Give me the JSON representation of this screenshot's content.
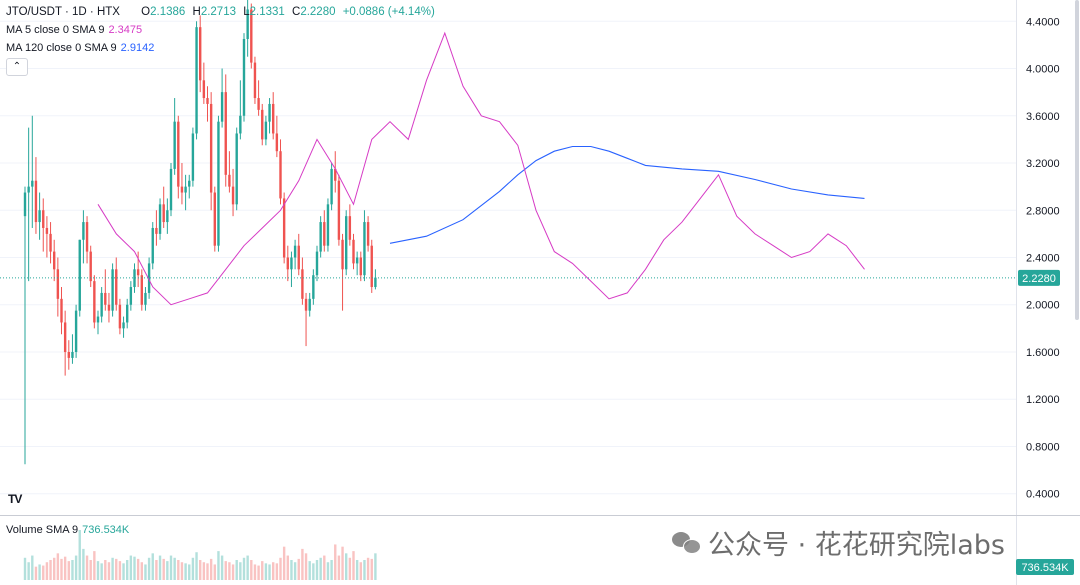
{
  "legend": {
    "symbol": "JTO/USDT · 1D · HTX",
    "open_label": "O",
    "open": "2.1386",
    "high_label": "H",
    "high": "2.2713",
    "low_label": "L",
    "low": "2.1331",
    "close_label": "C",
    "close": "2.2280",
    "change": "+0.0886 (+4.14%)",
    "ma5_label": "MA 5 close 0 SMA 9",
    "ma5_value": "2.3475",
    "ma120_label": "MA 120 close 0 SMA 9",
    "ma120_value": "2.9142",
    "volume_label": "Volume SMA 9",
    "volume_value": "736.534K",
    "collapse_icon": "chevron-up-icon"
  },
  "price_badge": "2.2280",
  "volume_badge": "736.534K",
  "logo_text": "TV",
  "watermark": "公众号 · 花花研究院labs",
  "colors": {
    "up": "#26a69a",
    "down": "#ef5350",
    "ma5": "#d63bc5",
    "ma120": "#2962ff",
    "badge": "#26a69a"
  },
  "chart_data": {
    "type": "candlestick",
    "y_axis_ticks": [
      "4.4000",
      "4.0000",
      "3.6000",
      "3.2000",
      "2.8000",
      "2.4000",
      "2.0000",
      "1.6000",
      "1.2000",
      "0.8000",
      "0.4000"
    ],
    "ylim": [
      0.22,
      4.58
    ],
    "current_price": 2.228,
    "ohlc": [
      [
        2.75,
        3.0,
        0.65,
        2.95
      ],
      [
        2.95,
        3.5,
        2.2,
        3.0
      ],
      [
        3.0,
        3.6,
        2.65,
        3.05
      ],
      [
        3.05,
        3.25,
        2.6,
        2.7
      ],
      [
        2.7,
        2.95,
        2.55,
        2.8
      ],
      [
        2.8,
        2.9,
        2.45,
        2.65
      ],
      [
        2.65,
        2.75,
        2.4,
        2.6
      ],
      [
        2.6,
        2.7,
        2.35,
        2.45
      ],
      [
        2.45,
        2.55,
        2.2,
        2.3
      ],
      [
        2.3,
        2.4,
        1.9,
        2.05
      ],
      [
        2.05,
        2.15,
        1.75,
        1.85
      ],
      [
        1.85,
        1.95,
        1.4,
        1.6
      ],
      [
        1.6,
        1.7,
        1.45,
        1.55
      ],
      [
        1.55,
        1.75,
        1.5,
        1.6
      ],
      [
        1.6,
        2.0,
        1.55,
        1.95
      ],
      [
        1.95,
        2.55,
        1.9,
        2.55
      ],
      [
        2.55,
        2.8,
        2.35,
        2.7
      ],
      [
        2.7,
        2.75,
        2.35,
        2.45
      ],
      [
        2.45,
        2.5,
        2.15,
        2.2
      ],
      [
        2.2,
        2.25,
        1.8,
        1.85
      ],
      [
        1.85,
        1.95,
        1.75,
        1.9
      ],
      [
        1.9,
        2.15,
        1.85,
        2.1
      ],
      [
        2.1,
        2.3,
        1.95,
        2.0
      ],
      [
        2.0,
        2.1,
        1.85,
        1.95
      ],
      [
        1.95,
        2.35,
        1.9,
        2.3
      ],
      [
        2.3,
        2.4,
        1.95,
        2.0
      ],
      [
        2.0,
        2.05,
        1.75,
        1.8
      ],
      [
        1.8,
        1.9,
        1.72,
        1.85
      ],
      [
        1.85,
        2.05,
        1.8,
        2.0
      ],
      [
        2.0,
        2.2,
        1.95,
        2.15
      ],
      [
        2.15,
        2.35,
        2.1,
        2.3
      ],
      [
        2.3,
        2.45,
        2.15,
        2.25
      ],
      [
        2.25,
        2.3,
        1.95,
        2.0
      ],
      [
        2.0,
        2.15,
        1.95,
        2.1
      ],
      [
        2.1,
        2.4,
        2.05,
        2.35
      ],
      [
        2.35,
        2.7,
        2.3,
        2.65
      ],
      [
        2.65,
        2.8,
        2.5,
        2.6
      ],
      [
        2.6,
        2.9,
        2.55,
        2.85
      ],
      [
        2.85,
        3.0,
        2.65,
        2.7
      ],
      [
        2.7,
        2.9,
        2.6,
        2.8
      ],
      [
        2.8,
        3.2,
        2.75,
        3.15
      ],
      [
        3.15,
        3.75,
        3.1,
        3.55
      ],
      [
        3.55,
        3.6,
        2.9,
        3.0
      ],
      [
        3.0,
        3.2,
        2.85,
        2.95
      ],
      [
        2.95,
        3.1,
        2.8,
        3.0
      ],
      [
        3.0,
        3.1,
        2.9,
        3.05
      ],
      [
        3.05,
        3.5,
        3.0,
        3.45
      ],
      [
        3.45,
        4.4,
        3.4,
        4.35
      ],
      [
        4.35,
        4.45,
        3.8,
        3.9
      ],
      [
        3.9,
        4.05,
        3.7,
        3.75
      ],
      [
        3.75,
        3.85,
        3.55,
        3.7
      ],
      [
        3.7,
        3.8,
        2.8,
        2.95
      ],
      [
        2.95,
        3.0,
        2.45,
        2.5
      ],
      [
        2.5,
        3.6,
        2.45,
        3.55
      ],
      [
        3.55,
        4.0,
        3.5,
        3.8
      ],
      [
        3.8,
        3.95,
        3.0,
        3.1
      ],
      [
        3.1,
        3.3,
        2.95,
        3.0
      ],
      [
        3.0,
        3.15,
        2.75,
        2.85
      ],
      [
        2.85,
        3.5,
        2.8,
        3.45
      ],
      [
        3.45,
        3.9,
        3.4,
        3.6
      ],
      [
        3.6,
        4.3,
        3.55,
        4.25
      ],
      [
        4.25,
        4.6,
        4.1,
        4.5
      ],
      [
        4.5,
        4.55,
        4.0,
        4.05
      ],
      [
        4.05,
        4.1,
        3.7,
        3.75
      ],
      [
        3.75,
        3.9,
        3.6,
        3.65
      ],
      [
        3.65,
        3.7,
        3.35,
        3.4
      ],
      [
        3.4,
        3.6,
        3.35,
        3.55
      ],
      [
        3.55,
        3.75,
        3.45,
        3.7
      ],
      [
        3.7,
        3.8,
        3.4,
        3.45
      ],
      [
        3.45,
        3.6,
        3.25,
        3.3
      ],
      [
        3.3,
        3.4,
        2.85,
        2.9
      ],
      [
        2.9,
        2.95,
        2.35,
        2.4
      ],
      [
        2.4,
        2.5,
        2.2,
        2.3
      ],
      [
        2.3,
        2.45,
        2.15,
        2.4
      ],
      [
        2.4,
        2.55,
        2.3,
        2.5
      ],
      [
        2.5,
        2.6,
        2.25,
        2.3
      ],
      [
        2.3,
        2.4,
        2.0,
        2.05
      ],
      [
        2.05,
        2.1,
        1.65,
        1.95
      ],
      [
        1.95,
        2.1,
        1.9,
        2.05
      ],
      [
        2.05,
        2.3,
        2.0,
        2.25
      ],
      [
        2.25,
        2.5,
        2.2,
        2.45
      ],
      [
        2.45,
        2.75,
        2.4,
        2.7
      ],
      [
        2.7,
        2.8,
        2.45,
        2.5
      ],
      [
        2.5,
        2.9,
        2.45,
        2.85
      ],
      [
        2.85,
        3.2,
        2.8,
        3.15
      ],
      [
        3.15,
        3.3,
        2.95,
        3.05
      ],
      [
        3.05,
        3.1,
        2.5,
        2.55
      ],
      [
        2.55,
        2.6,
        1.95,
        2.3
      ],
      [
        2.3,
        2.8,
        2.25,
        2.75
      ],
      [
        2.75,
        2.85,
        2.5,
        2.55
      ],
      [
        2.55,
        2.6,
        2.3,
        2.35
      ],
      [
        2.35,
        2.45,
        2.25,
        2.4
      ],
      [
        2.4,
        2.45,
        2.2,
        2.25
      ],
      [
        2.25,
        2.8,
        2.2,
        2.7
      ],
      [
        2.7,
        2.75,
        2.45,
        2.5
      ],
      [
        2.5,
        2.55,
        2.1,
        2.15
      ],
      [
        2.15,
        2.3,
        2.13,
        2.23
      ]
    ],
    "ma5": [
      [
        20,
        2.85
      ],
      [
        25,
        2.6
      ],
      [
        30,
        2.45
      ],
      [
        35,
        2.15
      ],
      [
        40,
        2.0
      ],
      [
        45,
        2.05
      ],
      [
        50,
        2.1
      ],
      [
        55,
        2.3
      ],
      [
        60,
        2.5
      ],
      [
        65,
        2.65
      ],
      [
        70,
        2.8
      ],
      [
        75,
        3.05
      ],
      [
        80,
        3.4
      ],
      [
        85,
        3.15
      ],
      [
        90,
        2.85
      ],
      [
        95,
        3.4
      ],
      [
        100,
        3.55
      ],
      [
        105,
        3.4
      ],
      [
        110,
        3.9
      ],
      [
        115,
        4.3
      ],
      [
        120,
        3.85
      ],
      [
        125,
        3.6
      ],
      [
        130,
        3.55
      ],
      [
        135,
        3.35
      ],
      [
        140,
        2.8
      ],
      [
        145,
        2.45
      ],
      [
        150,
        2.35
      ],
      [
        155,
        2.2
      ],
      [
        160,
        2.05
      ],
      [
        165,
        2.1
      ],
      [
        170,
        2.3
      ],
      [
        175,
        2.55
      ],
      [
        180,
        2.7
      ],
      [
        185,
        2.9
      ],
      [
        190,
        3.1
      ],
      [
        195,
        2.75
      ],
      [
        200,
        2.6
      ],
      [
        205,
        2.5
      ],
      [
        210,
        2.4
      ],
      [
        215,
        2.45
      ],
      [
        220,
        2.6
      ],
      [
        225,
        2.5
      ],
      [
        230,
        2.3
      ]
    ],
    "ma120": [
      [
        100,
        2.52
      ],
      [
        110,
        2.58
      ],
      [
        120,
        2.72
      ],
      [
        130,
        2.96
      ],
      [
        135,
        3.1
      ],
      [
        140,
        3.22
      ],
      [
        145,
        3.3
      ],
      [
        150,
        3.34
      ],
      [
        155,
        3.34
      ],
      [
        160,
        3.3
      ],
      [
        165,
        3.24
      ],
      [
        170,
        3.18
      ],
      [
        180,
        3.15
      ],
      [
        190,
        3.13
      ],
      [
        200,
        3.06
      ],
      [
        210,
        2.98
      ],
      [
        220,
        2.93
      ],
      [
        230,
        2.9
      ]
    ],
    "volume": [
      20,
      16,
      22,
      12,
      14,
      13,
      16,
      18,
      20,
      24,
      19,
      21,
      17,
      18,
      22,
      45,
      28,
      22,
      18,
      26,
      17,
      15,
      18,
      16,
      20,
      19,
      17,
      15,
      18,
      22,
      21,
      19,
      16,
      14,
      20,
      24,
      18,
      22,
      19,
      17,
      22,
      20,
      18,
      16,
      15,
      14,
      20,
      25,
      18,
      16,
      15,
      19,
      14,
      26,
      22,
      17,
      16,
      14,
      18,
      16,
      20,
      22,
      18,
      14,
      13,
      17,
      15,
      14,
      16,
      15,
      20,
      30,
      22,
      18,
      16,
      19,
      28,
      24,
      17,
      15,
      18,
      20,
      22,
      16,
      18,
      32,
      22,
      30,
      24,
      20,
      26,
      18,
      16,
      18,
      20,
      19,
      24
    ]
  }
}
